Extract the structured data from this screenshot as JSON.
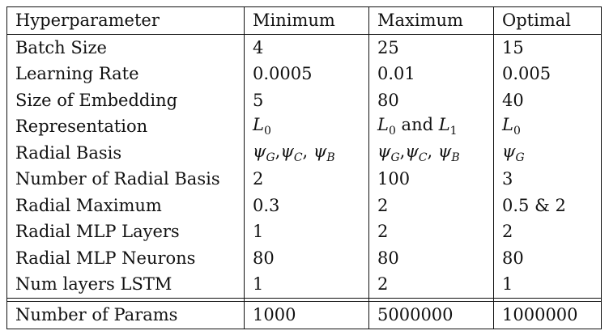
{
  "table": {
    "headers": [
      "Hyperparameter",
      "Minimum",
      "Maximum",
      "Optimal"
    ],
    "rows": [
      [
        "Batch Size",
        "4",
        "25",
        "15"
      ],
      [
        "Learning Rate",
        "0.0005",
        "0.01",
        "0.005"
      ],
      [
        "Size of Embedding",
        "5",
        "80",
        "40"
      ],
      [
        "Representation",
        "L₀",
        "L₀ and L₁",
        "L₀"
      ],
      [
        "Radial Basis",
        "ψ_G,ψ_C, ψ_B",
        "ψ_G,ψ_C, ψ_B",
        "ψ_G"
      ],
      [
        "Number of Radial Basis",
        "2",
        "100",
        "3"
      ],
      [
        "Radial Maximum",
        "0.3",
        "2",
        "0.5 & 2"
      ],
      [
        "Radial MLP Layers",
        "1",
        "2",
        "2"
      ],
      [
        "Radial MLP Neurons",
        "80",
        "80",
        "80"
      ],
      [
        "Num layers LSTM",
        "1",
        "2",
        "1"
      ]
    ],
    "total": [
      "Number of Params",
      "1000",
      "5000000",
      "1000000"
    ]
  }
}
